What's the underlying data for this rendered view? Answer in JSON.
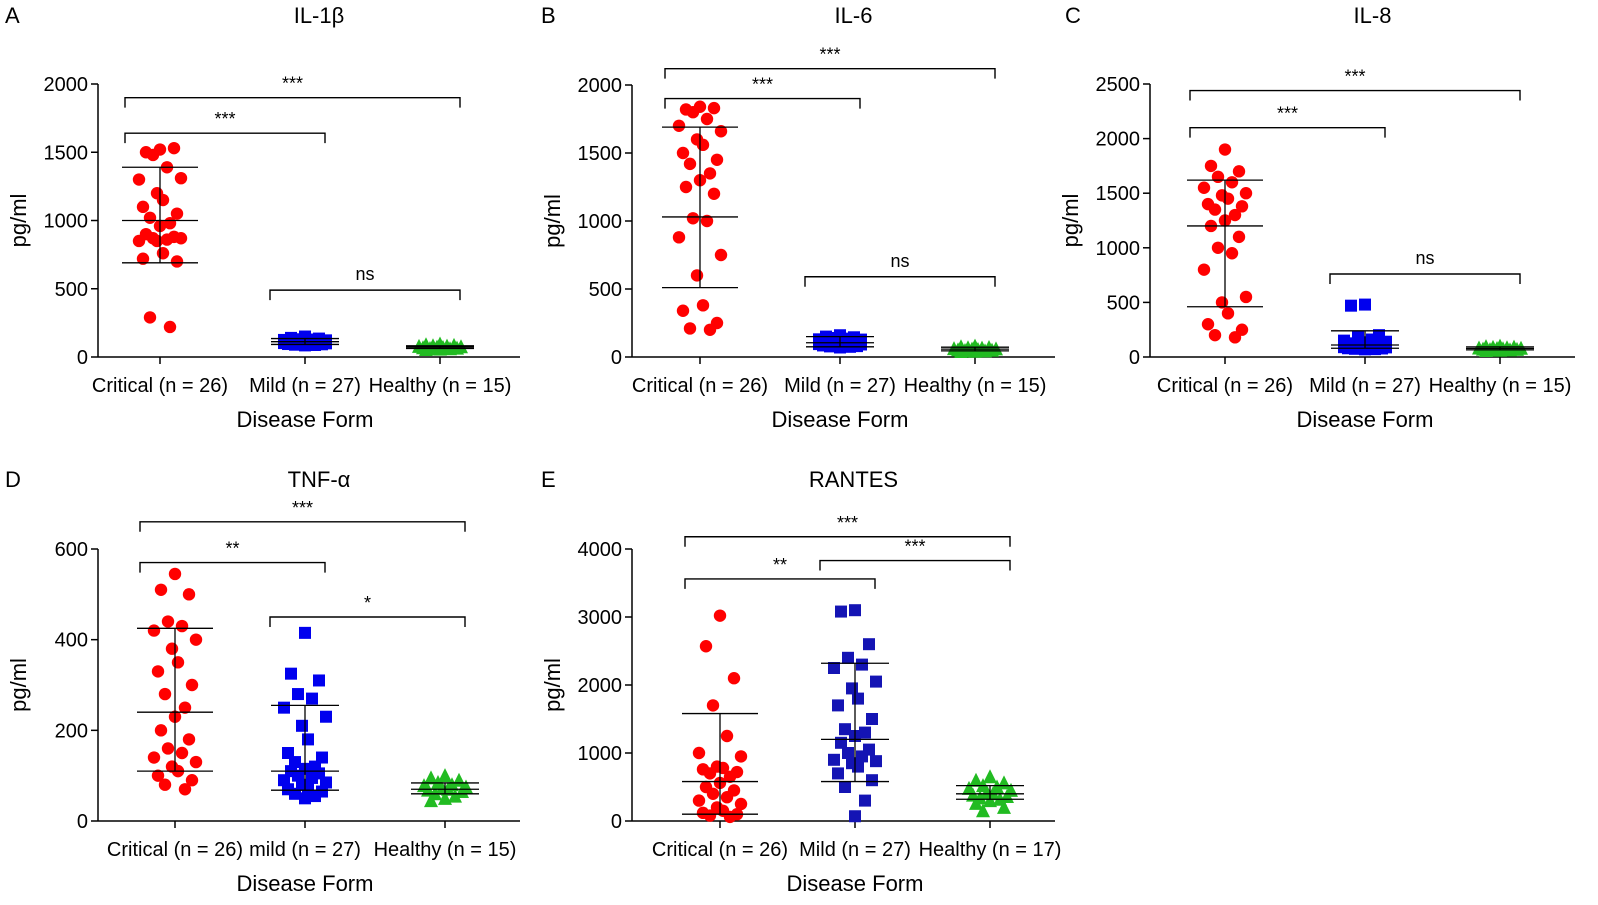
{
  "figure": {
    "xlabel": "Disease Form",
    "ylabel": "pg/ml",
    "colors": {
      "critical": "#ff0000",
      "mild": "#0000ee",
      "mild_dark": "#1414b4",
      "healthy": "#22bb22"
    }
  },
  "chart_data": [
    {
      "panel": "A",
      "type": "scatter",
      "title": "IL-1β",
      "xlabel": "Disease Form",
      "ylabel": "pg/ml",
      "ylim": [
        0,
        2000
      ],
      "yticks": [
        0,
        500,
        1000,
        1500,
        2000
      ],
      "groups": [
        {
          "label": "Critical (n = 26)",
          "marker": "circle",
          "color": "#ff0000",
          "values": [
            1520,
            1500,
            1530,
            1480,
            1390,
            1300,
            1310,
            1200,
            1150,
            1100,
            1050,
            1020,
            980,
            960,
            900,
            880,
            870,
            860,
            850,
            870,
            850,
            760,
            720,
            700,
            290,
            220
          ],
          "median": 1000,
          "range_low": 690,
          "range_high": 1390
        },
        {
          "label": "Mild (n = 27)",
          "marker": "square",
          "color": "#0000ee",
          "values": [
            150,
            140,
            135,
            130,
            128,
            125,
            122,
            120,
            118,
            116,
            115,
            113,
            112,
            110,
            108,
            106,
            105,
            104,
            102,
            100,
            98,
            96,
            95,
            93,
            90,
            88,
            85
          ],
          "median": 112,
          "range_low": 92,
          "range_high": 135
        },
        {
          "label": "Healthy (n = 15)",
          "marker": "triangle",
          "color": "#22bb22",
          "values": [
            95,
            90,
            85,
            82,
            80,
            78,
            75,
            72,
            70,
            68,
            65,
            62,
            60,
            58,
            55
          ],
          "median": 72,
          "range_low": 62,
          "range_high": 82
        }
      ],
      "comparisons": [
        {
          "from": 0,
          "to": 1,
          "label": "***",
          "y": 1640
        },
        {
          "from": 0,
          "to": 2,
          "label": "***",
          "y": 1900
        },
        {
          "from": 1,
          "to": 2,
          "label": "ns",
          "y": 490
        }
      ]
    },
    {
      "panel": "B",
      "type": "scatter",
      "title": "IL-6",
      "xlabel": "Disease Form",
      "ylabel": "pg/ml",
      "ylim": [
        0,
        2000
      ],
      "yticks": [
        0,
        500,
        1000,
        1500,
        2000
      ],
      "groups": [
        {
          "label": "Critical (n = 26)",
          "marker": "circle",
          "color": "#ff0000",
          "values": [
            1840,
            1820,
            1830,
            1800,
            1750,
            1700,
            1660,
            1600,
            1560,
            1500,
            1450,
            1420,
            1350,
            1300,
            1250,
            1200,
            1020,
            1000,
            880,
            750,
            600,
            380,
            340,
            250,
            210,
            200
          ],
          "median": 1030,
          "range_low": 510,
          "range_high": 1690
        },
        {
          "label": "Mild (n = 27)",
          "marker": "square",
          "color": "#0000ee",
          "values": [
            160,
            150,
            145,
            140,
            135,
            130,
            128,
            125,
            120,
            118,
            115,
            112,
            110,
            108,
            105,
            102,
            100,
            98,
            95,
            92,
            90,
            88,
            85,
            80,
            78,
            75,
            70
          ],
          "median": 105,
          "range_low": 75,
          "range_high": 150
        },
        {
          "label": "Healthy (n = 15)",
          "marker": "triangle",
          "color": "#22bb22",
          "values": [
            80,
            75,
            70,
            68,
            65,
            62,
            60,
            58,
            55,
            52,
            50,
            48,
            45,
            42,
            40
          ],
          "median": 58,
          "range_low": 45,
          "range_high": 72
        }
      ],
      "comparisons": [
        {
          "from": 0,
          "to": 1,
          "label": "***",
          "y": 1900
        },
        {
          "from": 0,
          "to": 2,
          "label": "***",
          "y": 2120
        },
        {
          "from": 1,
          "to": 2,
          "label": "ns",
          "y": 590
        }
      ]
    },
    {
      "panel": "C",
      "type": "scatter",
      "title": "IL-8",
      "xlabel": "Disease Form",
      "ylabel": "pg/ml",
      "ylim": [
        0,
        2500
      ],
      "yticks": [
        0,
        500,
        1000,
        1500,
        2000,
        2500
      ],
      "groups": [
        {
          "label": "Critical (n = 26)",
          "marker": "circle",
          "color": "#ff0000",
          "values": [
            1900,
            1750,
            1700,
            1650,
            1600,
            1550,
            1500,
            1480,
            1450,
            1400,
            1380,
            1350,
            1300,
            1250,
            1200,
            1100,
            1000,
            950,
            800,
            550,
            500,
            400,
            300,
            250,
            200,
            180
          ],
          "median": 1200,
          "range_low": 460,
          "range_high": 1620
        },
        {
          "label": "Mild (n = 27)",
          "marker": "square",
          "color": "#0000ee",
          "values": [
            480,
            470,
            200,
            180,
            160,
            150,
            140,
            135,
            130,
            125,
            120,
            115,
            110,
            105,
            100,
            98,
            95,
            92,
            90,
            88,
            85,
            82,
            80,
            78,
            75,
            72,
            70
          ],
          "median": 110,
          "range_low": 80,
          "range_high": 240
        },
        {
          "label": "Healthy (n = 15)",
          "marker": "triangle",
          "color": "#22bb22",
          "values": [
            100,
            95,
            90,
            88,
            85,
            82,
            80,
            78,
            75,
            72,
            70,
            68,
            65,
            62,
            60
          ],
          "median": 78,
          "range_low": 65,
          "range_high": 92
        }
      ],
      "comparisons": [
        {
          "from": 0,
          "to": 1,
          "label": "***",
          "y": 2100
        },
        {
          "from": 0,
          "to": 2,
          "label": "***",
          "y": 2440
        },
        {
          "from": 1,
          "to": 2,
          "label": "ns",
          "y": 760
        }
      ]
    },
    {
      "panel": "D",
      "type": "scatter",
      "title": "TNF-α",
      "xlabel": "Disease Form",
      "ylabel": "pg/ml",
      "ylim": [
        0,
        600
      ],
      "yticks": [
        0,
        200,
        400,
        600
      ],
      "groups": [
        {
          "label": "Critical (n = 26)",
          "marker": "circle",
          "color": "#ff0000",
          "values": [
            545,
            510,
            500,
            440,
            430,
            420,
            400,
            380,
            350,
            330,
            300,
            280,
            250,
            230,
            200,
            180,
            160,
            150,
            140,
            130,
            120,
            110,
            100,
            90,
            80,
            70
          ],
          "median": 240,
          "range_low": 110,
          "range_high": 425
        },
        {
          "label": "mild (n = 27)",
          "marker": "square",
          "color": "#0000ee",
          "values": [
            415,
            325,
            310,
            280,
            270,
            250,
            230,
            210,
            180,
            150,
            140,
            130,
            120,
            115,
            110,
            105,
            100,
            95,
            90,
            85,
            80,
            75,
            70,
            65,
            60,
            55,
            50
          ],
          "median": 110,
          "range_low": 68,
          "range_high": 255
        },
        {
          "label": "Healthy (n = 15)",
          "marker": "triangle",
          "color": "#22bb22",
          "values": [
            100,
            95,
            90,
            85,
            80,
            78,
            75,
            72,
            70,
            68,
            65,
            60,
            55,
            50,
            45
          ],
          "median": 70,
          "range_low": 60,
          "range_high": 84
        }
      ],
      "comparisons": [
        {
          "from": 0,
          "to": 1,
          "label": "**",
          "y": 570
        },
        {
          "from": 0,
          "to": 2,
          "label": "***",
          "y": 660
        },
        {
          "from": 1,
          "to": 2,
          "label": "*",
          "y": 450
        }
      ]
    },
    {
      "panel": "E",
      "type": "scatter",
      "title": "RANTES",
      "xlabel": "Disease Form",
      "ylabel": "pg/ml",
      "ylim": [
        0,
        4000
      ],
      "yticks": [
        0,
        1000,
        2000,
        3000,
        4000
      ],
      "groups": [
        {
          "label": "Critical (n = 26)",
          "marker": "circle",
          "color": "#ff0000",
          "values": [
            3020,
            2570,
            2100,
            1700,
            1250,
            1000,
            950,
            800,
            780,
            760,
            720,
            700,
            650,
            560,
            500,
            450,
            400,
            350,
            300,
            250,
            200,
            150,
            120,
            100,
            80,
            60
          ],
          "median": 580,
          "range_low": 100,
          "range_high": 1580
        },
        {
          "label": "Mild (n = 27)",
          "marker": "square",
          "color": "#1414b4",
          "values": [
            3100,
            3080,
            2600,
            2400,
            2300,
            2250,
            2050,
            1950,
            1800,
            1700,
            1500,
            1350,
            1300,
            1250,
            1150,
            1050,
            1000,
            950,
            900,
            880,
            850,
            800,
            700,
            600,
            500,
            300,
            70
          ],
          "median": 1200,
          "range_low": 580,
          "range_high": 2320
        },
        {
          "label": "Healthy (n = 17)",
          "marker": "triangle",
          "color": "#22bb22",
          "values": [
            650,
            600,
            560,
            520,
            500,
            480,
            450,
            420,
            400,
            380,
            360,
            340,
            320,
            300,
            260,
            200,
            150
          ],
          "median": 400,
          "range_low": 320,
          "range_high": 520
        }
      ],
      "comparisons": [
        {
          "from": 0,
          "to": 1,
          "label": "**",
          "y": 3560
        },
        {
          "from": 0,
          "to": 2,
          "label": "***",
          "y": 4180
        },
        {
          "from": 1,
          "to": 2,
          "label": "***",
          "y": 3830
        }
      ]
    }
  ]
}
